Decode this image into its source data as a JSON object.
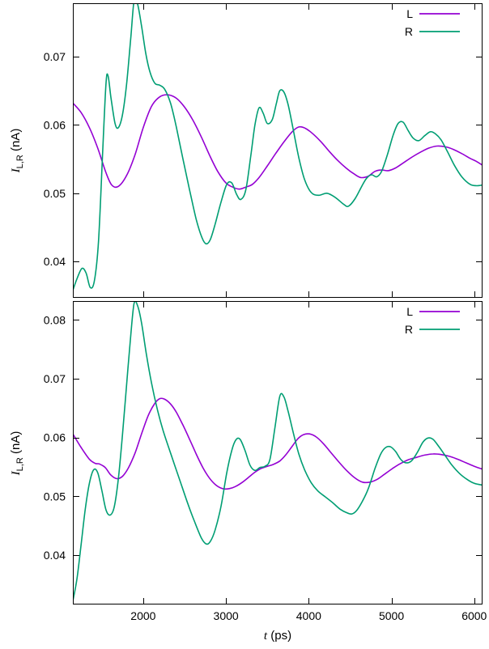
{
  "figure": {
    "background": "#ffffff",
    "xlabel": {
      "var": "t",
      "rest": " (ps)"
    },
    "ylabel": {
      "var": "I",
      "sub": "L,R",
      "rest": " (nA)"
    }
  },
  "chart_data": [
    {
      "type": "line",
      "title": "",
      "xlabel": "t (ps)",
      "ylabel": "I_L,R (nA)",
      "xlim": [
        1150,
        6100
      ],
      "ylim": [
        0.0347,
        0.0778
      ],
      "xticks": [
        2000,
        3000,
        4000,
        5000,
        6000
      ],
      "yticks": [
        0.04,
        0.05,
        0.06,
        0.07
      ],
      "show_x_tick_labels": false,
      "grid": false,
      "legend_position": "top-right",
      "series": [
        {
          "name": "L",
          "color": "#9400d3",
          "x": [
            1150,
            1250,
            1350,
            1450,
            1550,
            1620,
            1700,
            1800,
            1900,
            2000,
            2100,
            2200,
            2300,
            2400,
            2500,
            2600,
            2700,
            2800,
            2900,
            3000,
            3080,
            3160,
            3240,
            3320,
            3400,
            3500,
            3600,
            3700,
            3800,
            3880,
            3960,
            4050,
            4150,
            4250,
            4350,
            4450,
            4550,
            4630,
            4720,
            4800,
            4880,
            4960,
            5050,
            5150,
            5250,
            5350,
            5450,
            5550,
            5650,
            5750,
            5850,
            5950,
            6020,
            6100
          ],
          "y": [
            0.0632,
            0.0618,
            0.0596,
            0.0566,
            0.053,
            0.0512,
            0.051,
            0.0526,
            0.0556,
            0.0596,
            0.0627,
            0.0641,
            0.0644,
            0.0639,
            0.0626,
            0.0607,
            0.0583,
            0.0556,
            0.0532,
            0.0515,
            0.0509,
            0.0506,
            0.0509,
            0.0513,
            0.0523,
            0.054,
            0.0558,
            0.0575,
            0.059,
            0.0597,
            0.0595,
            0.0587,
            0.0575,
            0.0561,
            0.0548,
            0.0537,
            0.0528,
            0.0523,
            0.0525,
            0.0532,
            0.0534,
            0.0533,
            0.0537,
            0.0545,
            0.0553,
            0.056,
            0.0566,
            0.0569,
            0.0568,
            0.0564,
            0.0558,
            0.0551,
            0.0547,
            0.0541
          ]
        },
        {
          "name": "R",
          "color": "#009e73",
          "x": [
            1150,
            1200,
            1260,
            1310,
            1360,
            1410,
            1460,
            1510,
            1550,
            1575,
            1610,
            1660,
            1700,
            1750,
            1800,
            1850,
            1890,
            1930,
            1980,
            2030,
            2080,
            2140,
            2200,
            2260,
            2330,
            2400,
            2480,
            2560,
            2640,
            2710,
            2760,
            2810,
            2870,
            2940,
            3010,
            3070,
            3130,
            3180,
            3240,
            3300,
            3350,
            3400,
            3450,
            3500,
            3560,
            3610,
            3650,
            3700,
            3750,
            3810,
            3880,
            3950,
            4030,
            4120,
            4220,
            4320,
            4420,
            4480,
            4560,
            4640,
            4700,
            4760,
            4820,
            4880,
            4950,
            5020,
            5080,
            5140,
            5200,
            5260,
            5330,
            5400,
            5470,
            5530,
            5600,
            5680,
            5760,
            5850,
            5950,
            6030,
            6100
          ],
          "y": [
            0.0358,
            0.0375,
            0.039,
            0.0383,
            0.0362,
            0.0372,
            0.043,
            0.056,
            0.066,
            0.0672,
            0.064,
            0.0602,
            0.0596,
            0.0615,
            0.066,
            0.0728,
            0.0782,
            0.0778,
            0.0745,
            0.0705,
            0.0678,
            0.0661,
            0.0658,
            0.0652,
            0.0632,
            0.0597,
            0.055,
            0.0505,
            0.0462,
            0.0435,
            0.0426,
            0.0432,
            0.0455,
            0.0487,
            0.0513,
            0.0515,
            0.0498,
            0.0491,
            0.0505,
            0.0555,
            0.06,
            0.0625,
            0.0617,
            0.0602,
            0.0608,
            0.0632,
            0.065,
            0.0648,
            0.063,
            0.0595,
            0.0552,
            0.052,
            0.0501,
            0.0497,
            0.05,
            0.0494,
            0.0484,
            0.0481,
            0.0492,
            0.051,
            0.0522,
            0.0527,
            0.0524,
            0.0532,
            0.0556,
            0.0585,
            0.0602,
            0.0604,
            0.0592,
            0.0581,
            0.0577,
            0.0584,
            0.059,
            0.0587,
            0.0578,
            0.056,
            0.0541,
            0.0524,
            0.0513,
            0.0511,
            0.0512
          ]
        }
      ]
    },
    {
      "type": "line",
      "title": "",
      "xlabel": "t (ps)",
      "ylabel": "I_L,R (nA)",
      "xlim": [
        1150,
        6100
      ],
      "ylim": [
        0.0316,
        0.0832
      ],
      "xticks": [
        2000,
        3000,
        4000,
        5000,
        6000
      ],
      "yticks": [
        0.04,
        0.05,
        0.06,
        0.07,
        0.08
      ],
      "show_x_tick_labels": true,
      "grid": false,
      "legend_position": "top-right",
      "series": [
        {
          "name": "L",
          "color": "#9400d3",
          "x": [
            1150,
            1250,
            1350,
            1420,
            1470,
            1540,
            1610,
            1680,
            1750,
            1820,
            1900,
            1980,
            2060,
            2140,
            2200,
            2260,
            2330,
            2400,
            2480,
            2560,
            2640,
            2720,
            2800,
            2880,
            2960,
            3040,
            3120,
            3200,
            3280,
            3350,
            3420,
            3500,
            3570,
            3650,
            3720,
            3800,
            3870,
            3940,
            4010,
            4090,
            4180,
            4270,
            4360,
            4450,
            4550,
            4650,
            4740,
            4830,
            4920,
            5010,
            5100,
            5200,
            5300,
            5400,
            5500,
            5600,
            5700,
            5800,
            5900,
            6000,
            6100
          ],
          "y": [
            0.0606,
            0.0583,
            0.0563,
            0.0556,
            0.0555,
            0.0549,
            0.0536,
            0.053,
            0.0534,
            0.0548,
            0.0573,
            0.0606,
            0.0637,
            0.0658,
            0.0666,
            0.0665,
            0.0657,
            0.0643,
            0.0621,
            0.0597,
            0.0572,
            0.0549,
            0.0531,
            0.0519,
            0.0513,
            0.0513,
            0.0517,
            0.0524,
            0.0533,
            0.0541,
            0.0547,
            0.0551,
            0.0554,
            0.056,
            0.057,
            0.0585,
            0.0598,
            0.0605,
            0.0606,
            0.0601,
            0.0589,
            0.0574,
            0.0559,
            0.0545,
            0.0532,
            0.0524,
            0.0524,
            0.0529,
            0.0538,
            0.0547,
            0.0555,
            0.0562,
            0.0566,
            0.057,
            0.0572,
            0.0571,
            0.0568,
            0.0563,
            0.0557,
            0.0551,
            0.0546
          ]
        },
        {
          "name": "R",
          "color": "#009e73",
          "x": [
            1150,
            1200,
            1250,
            1300,
            1350,
            1400,
            1450,
            1500,
            1550,
            1600,
            1650,
            1700,
            1750,
            1800,
            1850,
            1890,
            1930,
            1980,
            2040,
            2100,
            2170,
            2240,
            2310,
            2380,
            2460,
            2540,
            2620,
            2700,
            2760,
            2810,
            2870,
            2940,
            3010,
            3070,
            3120,
            3170,
            3230,
            3290,
            3350,
            3410,
            3470,
            3530,
            3590,
            3650,
            3700,
            3750,
            3810,
            3880,
            3950,
            4030,
            4110,
            4200,
            4290,
            4380,
            4460,
            4520,
            4580,
            4650,
            4720,
            4800,
            4870,
            4930,
            4990,
            5050,
            5110,
            5170,
            5240,
            5310,
            5380,
            5440,
            5500,
            5570,
            5650,
            5730,
            5820,
            5910,
            6000,
            6100
          ],
          "y": [
            0.0322,
            0.036,
            0.0418,
            0.0478,
            0.0522,
            0.0545,
            0.054,
            0.051,
            0.0477,
            0.0468,
            0.0482,
            0.053,
            0.0605,
            0.069,
            0.0775,
            0.0828,
            0.0825,
            0.0795,
            0.074,
            0.0693,
            0.0648,
            0.0612,
            0.0582,
            0.0553,
            0.052,
            0.0487,
            0.0457,
            0.043,
            0.0419,
            0.0423,
            0.0443,
            0.0483,
            0.054,
            0.0578,
            0.0596,
            0.0597,
            0.0578,
            0.0553,
            0.0544,
            0.0549,
            0.0551,
            0.0562,
            0.0615,
            0.067,
            0.0669,
            0.0645,
            0.061,
            0.0572,
            0.0545,
            0.0523,
            0.0509,
            0.0499,
            0.0489,
            0.0478,
            0.0472,
            0.047,
            0.0476,
            0.0492,
            0.0513,
            0.0547,
            0.0572,
            0.0583,
            0.0584,
            0.0576,
            0.0563,
            0.0557,
            0.056,
            0.0574,
            0.0592,
            0.0599,
            0.0597,
            0.0585,
            0.0569,
            0.0553,
            0.0539,
            0.0529,
            0.0522,
            0.0519
          ]
        }
      ]
    }
  ]
}
